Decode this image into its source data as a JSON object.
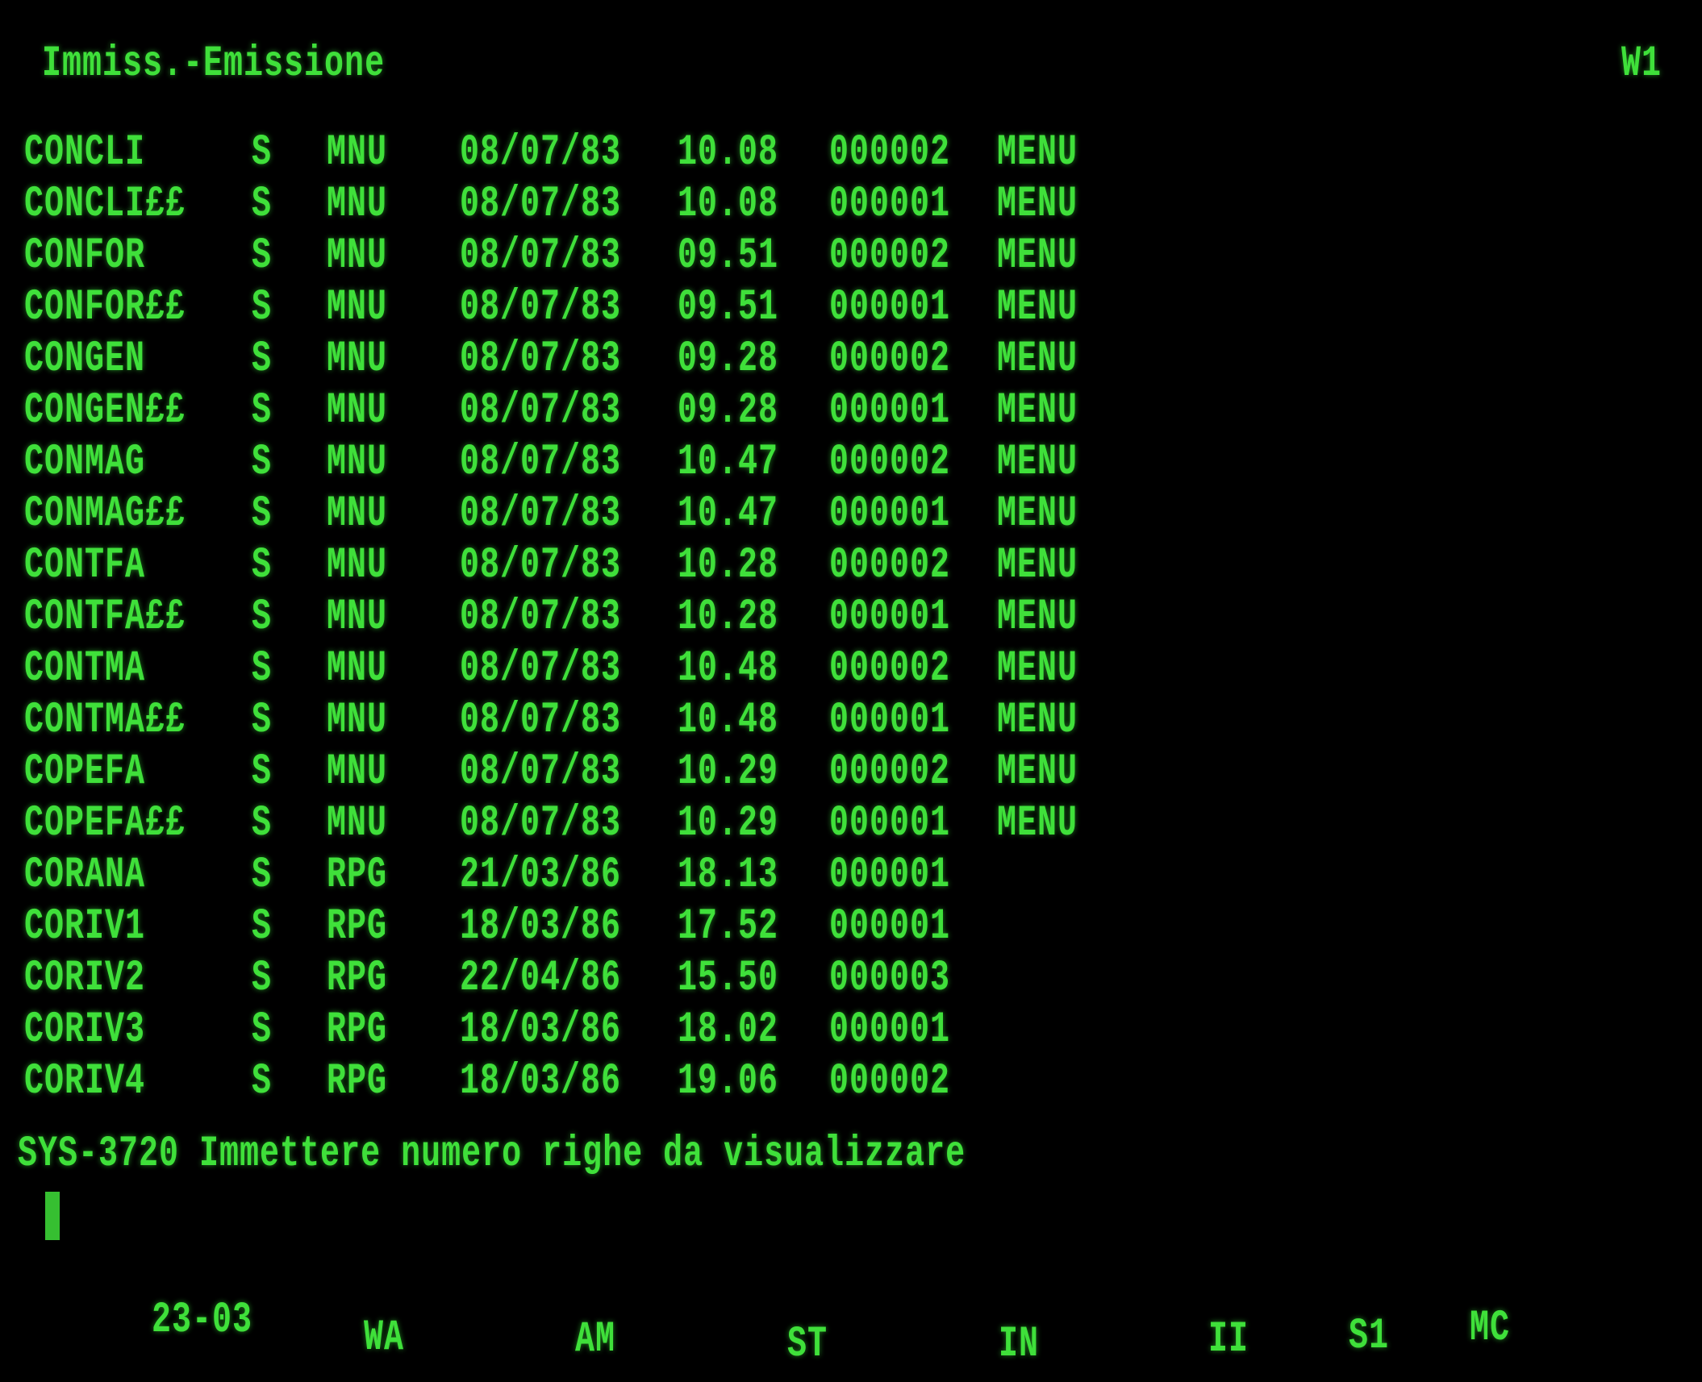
{
  "header": {
    "title": "Immiss.-Emissione",
    "workstation": "W1"
  },
  "rows": [
    {
      "name": "CONCLI",
      "attr": "S",
      "type": "MNU",
      "date": "08/07/83",
      "time": "10.08",
      "count": "000002",
      "text": "MENU"
    },
    {
      "name": "CONCLI££",
      "attr": "S",
      "type": "MNU",
      "date": "08/07/83",
      "time": "10.08",
      "count": "000001",
      "text": "MENU"
    },
    {
      "name": "CONFOR",
      "attr": "S",
      "type": "MNU",
      "date": "08/07/83",
      "time": "09.51",
      "count": "000002",
      "text": "MENU"
    },
    {
      "name": "CONFOR££",
      "attr": "S",
      "type": "MNU",
      "date": "08/07/83",
      "time": "09.51",
      "count": "000001",
      "text": "MENU"
    },
    {
      "name": "CONGEN",
      "attr": "S",
      "type": "MNU",
      "date": "08/07/83",
      "time": "09.28",
      "count": "000002",
      "text": "MENU"
    },
    {
      "name": "CONGEN££",
      "attr": "S",
      "type": "MNU",
      "date": "08/07/83",
      "time": "09.28",
      "count": "000001",
      "text": "MENU"
    },
    {
      "name": "CONMAG",
      "attr": "S",
      "type": "MNU",
      "date": "08/07/83",
      "time": "10.47",
      "count": "000002",
      "text": "MENU"
    },
    {
      "name": "CONMAG££",
      "attr": "S",
      "type": "MNU",
      "date": "08/07/83",
      "time": "10.47",
      "count": "000001",
      "text": "MENU"
    },
    {
      "name": "CONTFA",
      "attr": "S",
      "type": "MNU",
      "date": "08/07/83",
      "time": "10.28",
      "count": "000002",
      "text": "MENU"
    },
    {
      "name": "CONTFA££",
      "attr": "S",
      "type": "MNU",
      "date": "08/07/83",
      "time": "10.28",
      "count": "000001",
      "text": "MENU"
    },
    {
      "name": "CONTMA",
      "attr": "S",
      "type": "MNU",
      "date": "08/07/83",
      "time": "10.48",
      "count": "000002",
      "text": "MENU"
    },
    {
      "name": "CONTMA££",
      "attr": "S",
      "type": "MNU",
      "date": "08/07/83",
      "time": "10.48",
      "count": "000001",
      "text": "MENU"
    },
    {
      "name": "COPEFA",
      "attr": "S",
      "type": "MNU",
      "date": "08/07/83",
      "time": "10.29",
      "count": "000002",
      "text": "MENU"
    },
    {
      "name": "COPEFA££",
      "attr": "S",
      "type": "MNU",
      "date": "08/07/83",
      "time": "10.29",
      "count": "000001",
      "text": "MENU"
    },
    {
      "name": "CORANA",
      "attr": "S",
      "type": "RPG",
      "date": "21/03/86",
      "time": "18.13",
      "count": "000001",
      "text": ""
    },
    {
      "name": "CORIV1",
      "attr": "S",
      "type": "RPG",
      "date": "18/03/86",
      "time": "17.52",
      "count": "000001",
      "text": ""
    },
    {
      "name": "CORIV2",
      "attr": "S",
      "type": "RPG",
      "date": "22/04/86",
      "time": "15.50",
      "count": "000003",
      "text": ""
    },
    {
      "name": "CORIV3",
      "attr": "S",
      "type": "RPG",
      "date": "18/03/86",
      "time": "18.02",
      "count": "000001",
      "text": ""
    },
    {
      "name": "CORIV4",
      "attr": "S",
      "type": "RPG",
      "date": "18/03/86",
      "time": "19.06",
      "count": "000002",
      "text": ""
    }
  ],
  "message": "SYS-3720 Immettere numero righe da visualizzare",
  "status_bar": [
    "23-03",
    "WA",
    "AM",
    "ST",
    "IN",
    "II",
    "S1",
    "MC"
  ],
  "colors": {
    "phosphor": "#3fe03a",
    "background": "#000000"
  }
}
